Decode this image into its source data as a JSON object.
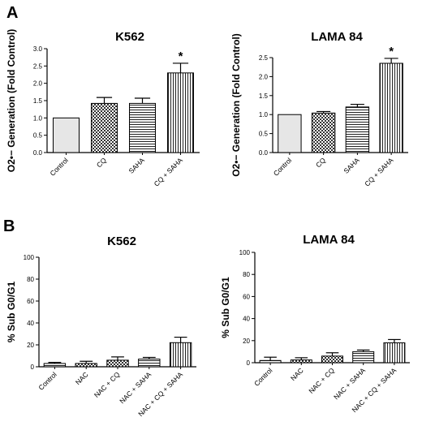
{
  "panel_labels": [
    "A",
    "B"
  ],
  "chart_data": [
    {
      "type": "bar",
      "panel": "A",
      "title": "K562",
      "ylabel": "O2•− Generation (Fold Control)",
      "ylim": [
        0,
        3.0
      ],
      "yticks": [
        "0.0",
        "0.5",
        "1.0",
        "1.5",
        "2.0",
        "2.5",
        "3.0"
      ],
      "categories": [
        "Control",
        "CQ",
        "SAHA",
        "CQ + SAHA"
      ],
      "values": [
        1.0,
        1.42,
        1.42,
        2.3
      ],
      "errors": [
        0,
        0.17,
        0.15,
        0.28
      ],
      "patterns": [
        "solid",
        "checker",
        "hlines",
        "vlines"
      ],
      "significance": [
        "",
        "",
        "",
        "*"
      ],
      "grid": false
    },
    {
      "type": "bar",
      "panel": "A",
      "title": "LAMA 84",
      "ylabel": "O2•− Generation (Fold Control)",
      "ylim": [
        0,
        2.5
      ],
      "yticks": [
        "0.0",
        "0.5",
        "1.0",
        "1.5",
        "2.0",
        "2.5"
      ],
      "categories": [
        "Control",
        "CQ",
        "SAHA",
        "CQ + SAHA"
      ],
      "values": [
        1.0,
        1.04,
        1.2,
        2.35
      ],
      "errors": [
        0,
        0.04,
        0.07,
        0.13
      ],
      "patterns": [
        "solid",
        "checker",
        "hlines",
        "vlines"
      ],
      "significance": [
        "",
        "",
        "",
        "*"
      ],
      "grid": false
    },
    {
      "type": "bar",
      "panel": "B",
      "title": "K562",
      "ylabel": "% Sub G0/G1",
      "ylim": [
        0,
        100
      ],
      "yticks": [
        "0",
        "20",
        "40",
        "60",
        "80",
        "100"
      ],
      "categories": [
        "Control",
        "NAC",
        "NAC + CQ",
        "NAC + SAHA",
        "NAC + CQ + SAHA"
      ],
      "values": [
        3,
        3,
        6,
        7,
        22
      ],
      "errors": [
        1,
        2,
        3,
        1.5,
        5
      ],
      "patterns": [
        "hlines",
        "checker",
        "checker",
        "hlines",
        "vlines"
      ],
      "significance": [
        "",
        "",
        "",
        "",
        ""
      ],
      "grid": false
    },
    {
      "type": "bar",
      "panel": "B",
      "title": "LAMA 84",
      "ylabel": "% Sub G0/G1",
      "ylim": [
        0,
        100
      ],
      "yticks": [
        "0",
        "20",
        "40",
        "60",
        "80",
        "100"
      ],
      "categories": [
        "Control",
        "NAC",
        "NAC + CQ",
        "NAC + SAHA",
        "NAC + CQ + SAHA"
      ],
      "values": [
        2,
        2.5,
        6,
        10,
        18
      ],
      "errors": [
        3,
        2,
        3,
        1.5,
        3
      ],
      "patterns": [
        "hlines",
        "checker",
        "checker",
        "hlines",
        "vlines"
      ],
      "significance": [
        "",
        "",
        "",
        "",
        ""
      ],
      "grid": false
    }
  ]
}
